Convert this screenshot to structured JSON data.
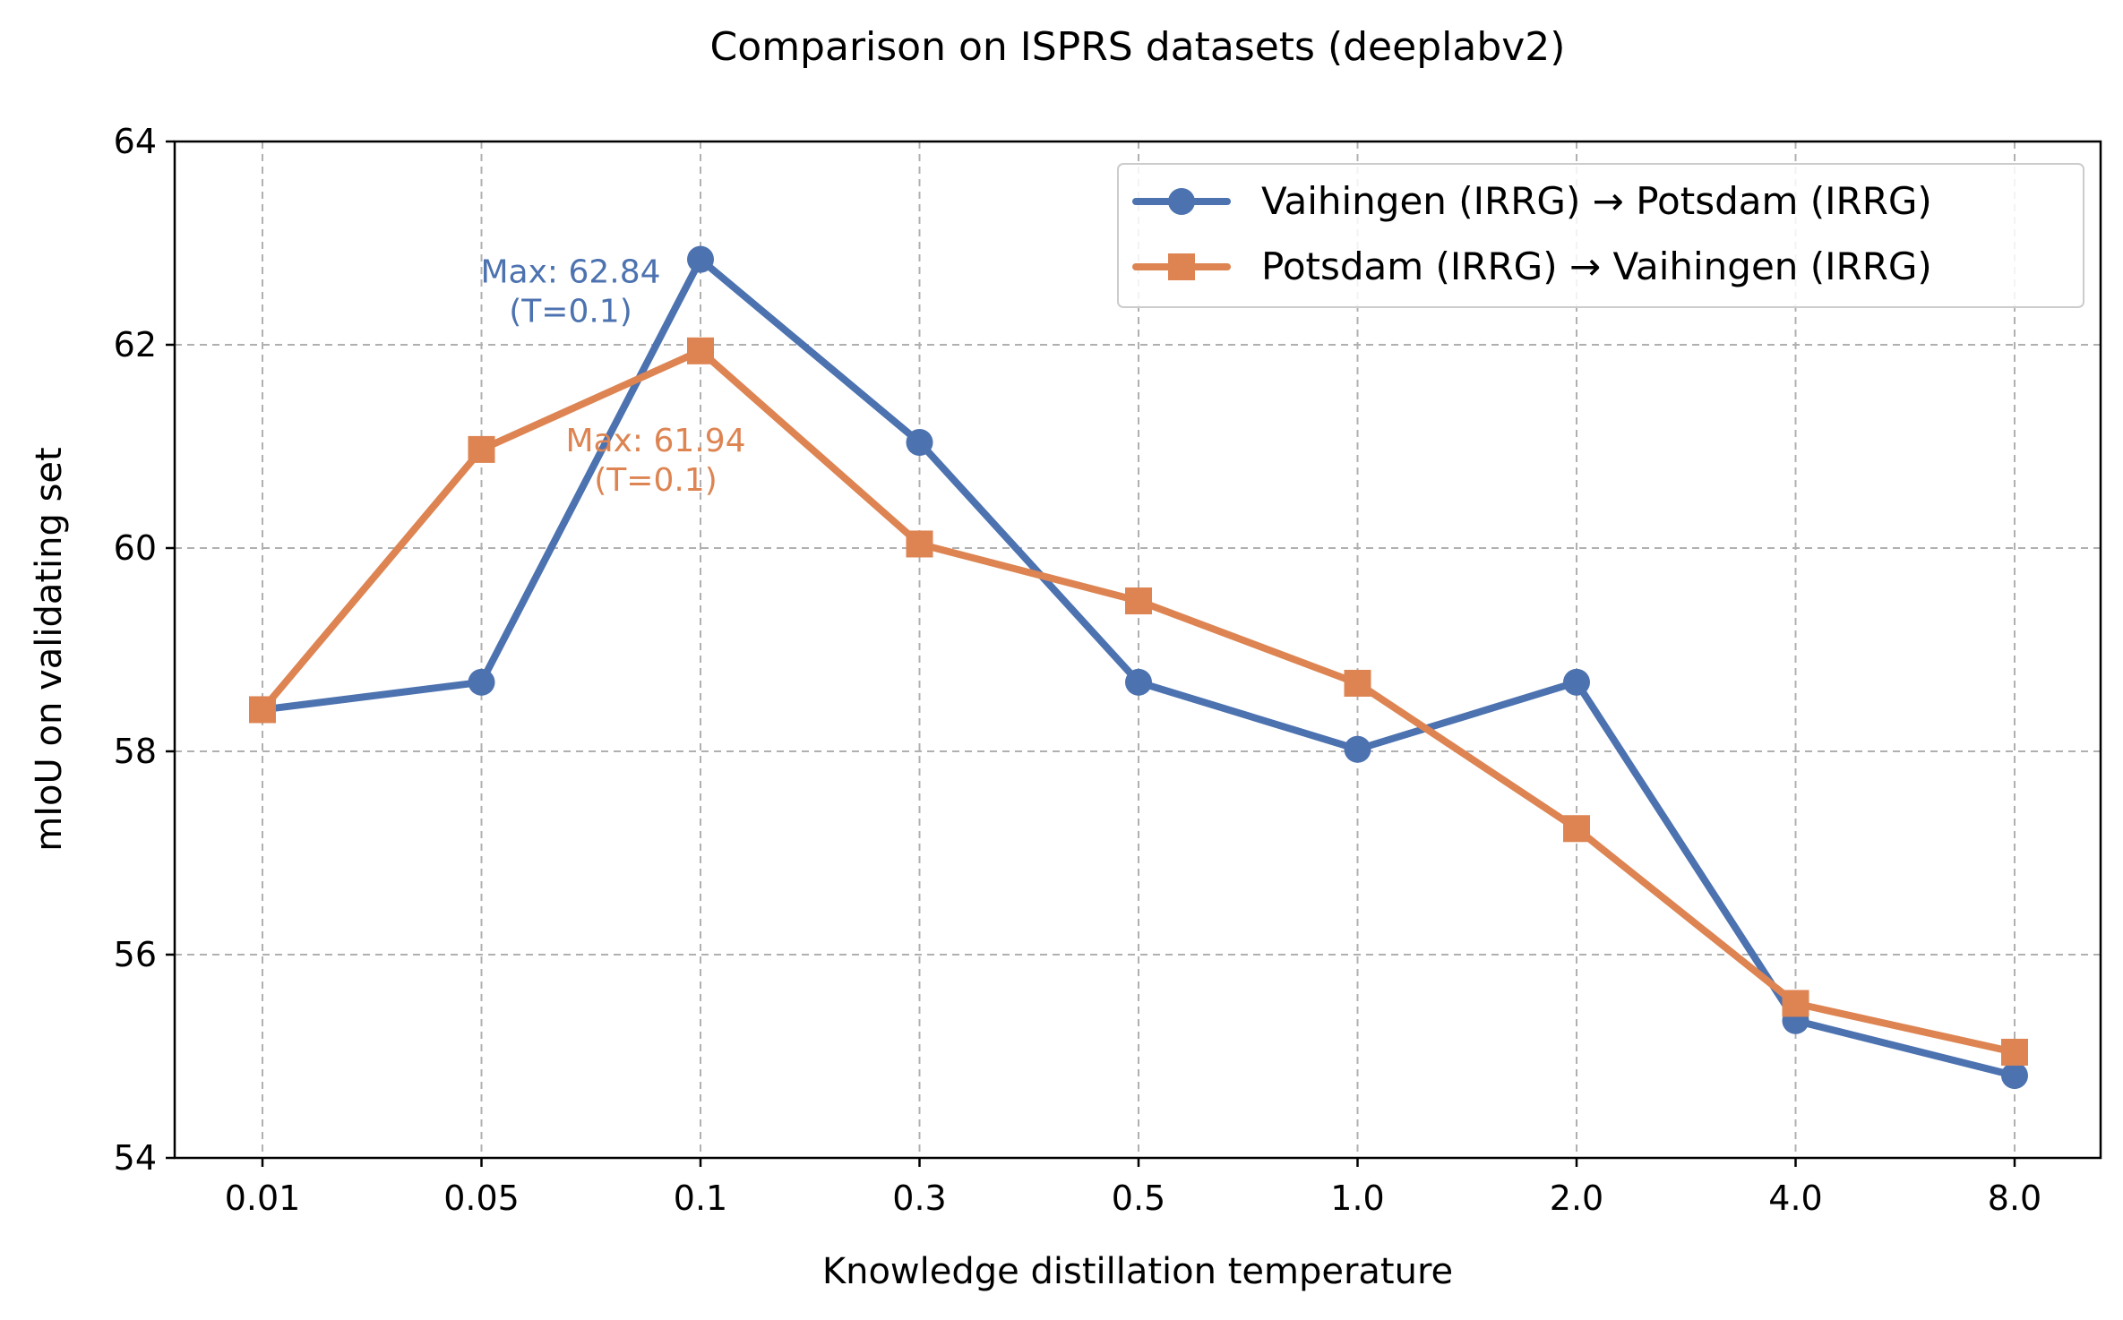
{
  "chart_data": {
    "type": "line",
    "title": "Comparison on ISPRS datasets (deeplabv2)",
    "xlabel": "Knowledge distillation temperature",
    "ylabel": "mIoU on validating set",
    "categories": [
      "0.01",
      "0.05",
      "0.1",
      "0.3",
      "0.5",
      "1.0",
      "2.0",
      "4.0",
      "8.0"
    ],
    "ylim": [
      54,
      64
    ],
    "yticks": [
      54,
      56,
      58,
      60,
      62,
      64
    ],
    "grid": true,
    "legend_position": "top-right",
    "series": [
      {
        "name": "Vaihingen (IRRG) → Potsdam (IRRG)",
        "color": "#4c72b0",
        "marker": "circle",
        "values": [
          58.41,
          58.68,
          62.84,
          61.04,
          58.68,
          58.02,
          58.68,
          55.35,
          54.81
        ]
      },
      {
        "name": "Potsdam (IRRG) → Vaihingen (IRRG)",
        "color": "#dd8452",
        "marker": "square",
        "values": [
          58.41,
          60.97,
          61.94,
          60.04,
          59.48,
          58.67,
          57.24,
          55.52,
          55.04
        ]
      }
    ],
    "annotations": [
      {
        "series": 0,
        "line1": "Max: 62.84",
        "line2": "(T=0.1)",
        "color": "#4c72b0"
      },
      {
        "series": 1,
        "line1": "Max: 61.94",
        "line2": "(T=0.1)",
        "color": "#dd8452"
      }
    ]
  }
}
